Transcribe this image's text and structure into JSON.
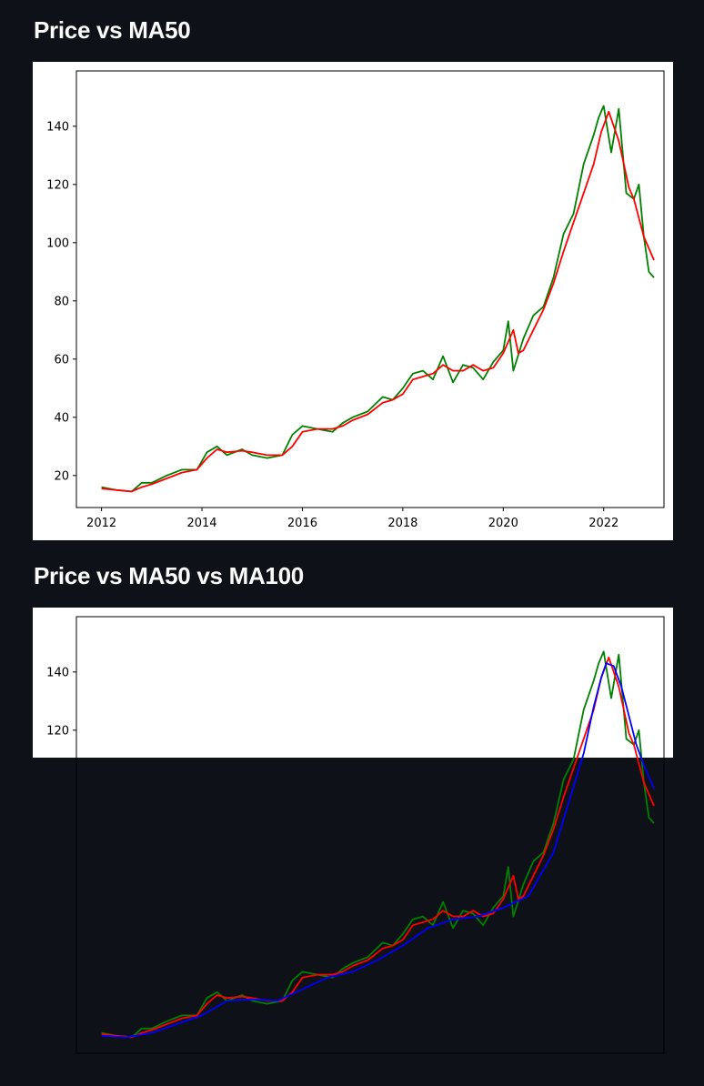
{
  "sections": [
    {
      "title": "Price vs MA50"
    },
    {
      "title": "Price vs MA50 vs MA100"
    }
  ],
  "colors": {
    "price": "#008000",
    "ma50": "#ff0000",
    "ma100": "#0000ff",
    "background": "#0e1117"
  },
  "chart_data": [
    {
      "type": "line",
      "title": "",
      "xlabel": "",
      "ylabel": "",
      "xlim": [
        2011.5,
        2023.2
      ],
      "ylim": [
        9,
        159
      ],
      "xticks": [
        2012,
        2014,
        2016,
        2018,
        2020,
        2022
      ],
      "yticks": [
        20,
        40,
        60,
        80,
        100,
        120,
        140
      ],
      "grid": false,
      "series": [
        {
          "color": "#008000",
          "x": [
            2012.0,
            2012.3,
            2012.6,
            2012.8,
            2013.0,
            2013.3,
            2013.6,
            2013.9,
            2014.1,
            2014.3,
            2014.5,
            2014.8,
            2015.0,
            2015.3,
            2015.6,
            2015.8,
            2016.0,
            2016.3,
            2016.6,
            2016.8,
            2017.0,
            2017.3,
            2017.6,
            2017.8,
            2018.0,
            2018.2,
            2018.4,
            2018.6,
            2018.8,
            2019.0,
            2019.2,
            2019.4,
            2019.6,
            2019.8,
            2020.0,
            2020.1,
            2020.2,
            2020.4,
            2020.6,
            2020.8,
            2021.0,
            2021.2,
            2021.4,
            2021.6,
            2021.8,
            2021.9,
            2022.0,
            2022.15,
            2022.3,
            2022.45,
            2022.6,
            2022.7,
            2022.8,
            2022.9,
            2023.0
          ],
          "y": [
            16,
            15,
            14.5,
            17.5,
            17.5,
            20,
            22,
            22,
            28,
            30,
            27,
            29,
            27,
            26,
            27,
            34,
            37,
            36,
            35,
            38,
            40,
            42,
            47,
            46,
            50,
            55,
            56,
            53,
            61,
            52,
            58,
            57,
            53,
            59,
            63,
            73,
            56,
            67,
            75,
            78,
            88,
            103,
            110,
            127,
            137,
            143,
            147,
            131,
            146,
            117,
            115,
            120,
            102,
            90,
            88
          ]
        },
        {
          "color": "#ff0000",
          "x": [
            2012.0,
            2012.3,
            2012.6,
            2012.8,
            2013.0,
            2013.3,
            2013.6,
            2013.9,
            2014.1,
            2014.3,
            2014.5,
            2014.8,
            2015.0,
            2015.3,
            2015.6,
            2015.8,
            2016.0,
            2016.3,
            2016.6,
            2016.8,
            2017.0,
            2017.3,
            2017.6,
            2017.8,
            2018.0,
            2018.2,
            2018.4,
            2018.6,
            2018.8,
            2019.0,
            2019.2,
            2019.4,
            2019.6,
            2019.8,
            2020.0,
            2020.2,
            2020.3,
            2020.4,
            2020.6,
            2020.8,
            2021.0,
            2021.2,
            2021.4,
            2021.6,
            2021.8,
            2021.95,
            2022.1,
            2022.3,
            2022.5,
            2022.6,
            2022.8,
            2023.0
          ],
          "y": [
            15.5,
            15,
            14.5,
            16,
            17,
            19,
            21,
            22,
            26,
            29,
            28,
            28.5,
            28,
            27,
            27,
            30,
            35,
            36,
            36,
            37,
            39,
            41,
            45,
            46,
            48,
            53,
            54,
            55,
            58,
            56,
            56,
            58,
            56,
            57,
            62,
            70,
            62,
            63,
            70,
            77,
            86,
            97,
            107,
            117,
            127,
            138,
            145,
            135,
            119,
            115,
            102,
            94
          ]
        }
      ]
    },
    {
      "type": "line",
      "title": "",
      "xlabel": "",
      "ylabel": "",
      "xlim": [
        2011.5,
        2023.2
      ],
      "ylim": [
        9,
        159
      ],
      "yticks": [
        120,
        140
      ],
      "grid": false,
      "series": [
        {
          "color": "#008000",
          "x": [
            2012.0,
            2012.3,
            2012.6,
            2012.8,
            2013.0,
            2013.3,
            2013.6,
            2013.9,
            2014.1,
            2014.3,
            2014.5,
            2014.8,
            2015.0,
            2015.3,
            2015.6,
            2015.8,
            2016.0,
            2016.3,
            2016.6,
            2016.8,
            2017.0,
            2017.3,
            2017.6,
            2017.8,
            2018.0,
            2018.2,
            2018.4,
            2018.6,
            2018.8,
            2019.0,
            2019.2,
            2019.4,
            2019.6,
            2019.8,
            2020.0,
            2020.1,
            2020.2,
            2020.4,
            2020.6,
            2020.8,
            2021.0,
            2021.2,
            2021.4,
            2021.6,
            2021.8,
            2021.9,
            2022.0,
            2022.15,
            2022.3,
            2022.45,
            2022.6,
            2022.7,
            2022.8,
            2022.9,
            2023.0
          ],
          "y": [
            16,
            15,
            14.5,
            17.5,
            17.5,
            20,
            22,
            22,
            28,
            30,
            27,
            29,
            27,
            26,
            27,
            34,
            37,
            36,
            35,
            38,
            40,
            42,
            47,
            46,
            50,
            55,
            56,
            53,
            61,
            52,
            58,
            57,
            53,
            59,
            63,
            73,
            56,
            67,
            75,
            78,
            88,
            103,
            110,
            127,
            137,
            143,
            147,
            131,
            146,
            117,
            115,
            120,
            102,
            90,
            88
          ]
        },
        {
          "color": "#ff0000",
          "x": [
            2012.0,
            2012.3,
            2012.6,
            2012.8,
            2013.0,
            2013.3,
            2013.6,
            2013.9,
            2014.1,
            2014.3,
            2014.5,
            2014.8,
            2015.0,
            2015.3,
            2015.6,
            2015.8,
            2016.0,
            2016.3,
            2016.6,
            2016.8,
            2017.0,
            2017.3,
            2017.6,
            2017.8,
            2018.0,
            2018.2,
            2018.4,
            2018.6,
            2018.8,
            2019.0,
            2019.2,
            2019.4,
            2019.6,
            2019.8,
            2020.0,
            2020.2,
            2020.3,
            2020.4,
            2020.6,
            2020.8,
            2021.0,
            2021.2,
            2021.4,
            2021.6,
            2021.8,
            2021.95,
            2022.1,
            2022.3,
            2022.5,
            2022.6,
            2022.8,
            2023.0
          ],
          "y": [
            15.5,
            15,
            14.5,
            16,
            17,
            19,
            21,
            22,
            26,
            29,
            28,
            28.5,
            28,
            27,
            27,
            30,
            35,
            36,
            36,
            37,
            39,
            41,
            45,
            46,
            48,
            53,
            54,
            55,
            58,
            56,
            56,
            58,
            56,
            57,
            62,
            70,
            62,
            63,
            70,
            77,
            86,
            97,
            107,
            117,
            127,
            138,
            145,
            135,
            119,
            115,
            102,
            94
          ]
        },
        {
          "color": "#0000ff",
          "x": [
            2012.0,
            2012.5,
            2013.0,
            2013.5,
            2014.0,
            2014.5,
            2015.0,
            2015.5,
            2016.0,
            2016.5,
            2017.0,
            2017.5,
            2018.0,
            2018.5,
            2019.0,
            2019.5,
            2020.0,
            2020.5,
            2021.0,
            2021.3,
            2021.6,
            2021.8,
            2021.95,
            2022.05,
            2022.2,
            2022.35,
            2022.5,
            2022.65,
            2022.8,
            2023.0
          ],
          "y": [
            15,
            14.5,
            16,
            19,
            22,
            27,
            27.5,
            27,
            31,
            35,
            37,
            41,
            46,
            52,
            55,
            56,
            59,
            63,
            78,
            95,
            112,
            128,
            138,
            143,
            142,
            135,
            125,
            115,
            108,
            100
          ]
        }
      ]
    }
  ]
}
